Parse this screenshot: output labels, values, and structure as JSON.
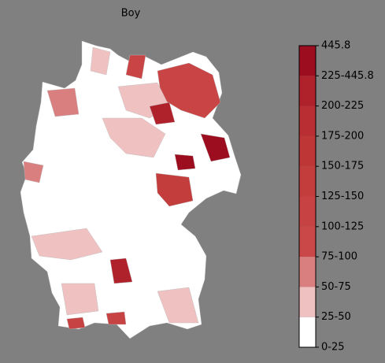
{
  "title": "Boy",
  "legend": {
    "labels": [
      "0-25",
      "25-50",
      "50-75",
      "75-100",
      "100-125",
      "125-150",
      "150-175",
      "175-200",
      "200-225",
      "225-445.8",
      "445.8"
    ],
    "colors": [
      "#ffffff",
      "#efc1c1",
      "#da7f7f",
      "#ca4848",
      "#c74343",
      "#c33d3d",
      "#be3636",
      "#b92e32",
      "#b0222b",
      "#9c0d1f"
    ]
  }
}
